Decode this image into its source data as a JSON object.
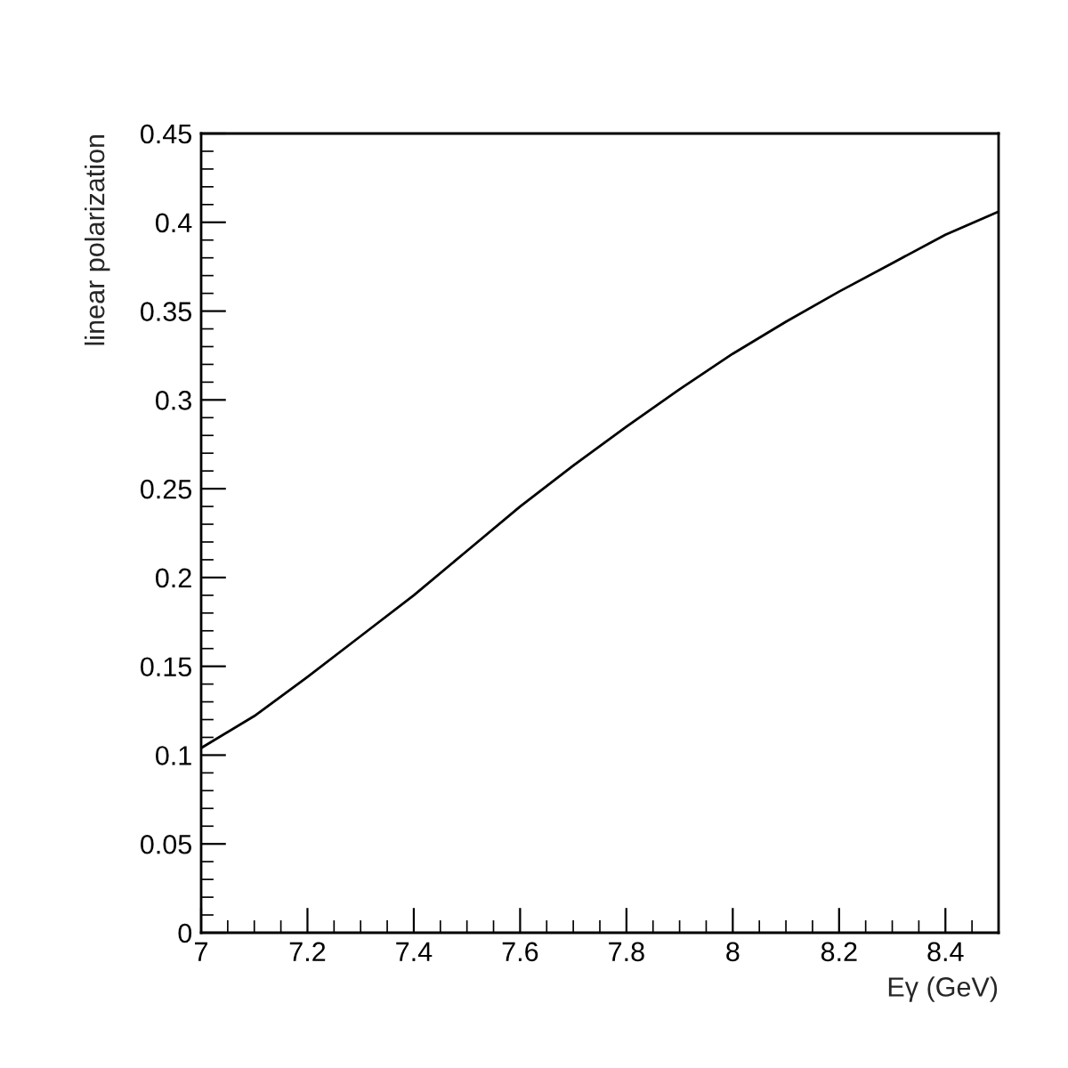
{
  "chart_data": {
    "type": "line",
    "xlabel": "Eγ (GeV)",
    "ylabel": "linear polarization",
    "x": [
      7,
      7.1,
      7.2,
      7.3,
      7.4,
      7.5,
      7.6,
      7.7,
      7.8,
      7.9,
      8.0,
      8.1,
      8.2,
      8.3,
      8.4,
      8.5
    ],
    "series": [
      {
        "color": "#000000",
        "values": [
          0.104,
          0.122,
          0.144,
          0.167,
          0.19,
          0.215,
          0.24,
          0.263,
          0.285,
          0.306,
          0.326,
          0.344,
          0.361,
          0.377,
          0.393,
          0.406
        ]
      }
    ],
    "xlim": [
      7,
      8.5
    ],
    "xticks": [
      7,
      7.2,
      7.4,
      7.6,
      7.8,
      8,
      8.2,
      8.4
    ],
    "ylim": [
      0,
      0.45
    ],
    "yticks": [
      0,
      0.05,
      0.1,
      0.15,
      0.2,
      0.25,
      0.3,
      0.35,
      0.4,
      0.45
    ],
    "grid": false,
    "marker": "none",
    "line_style": "solid"
  }
}
